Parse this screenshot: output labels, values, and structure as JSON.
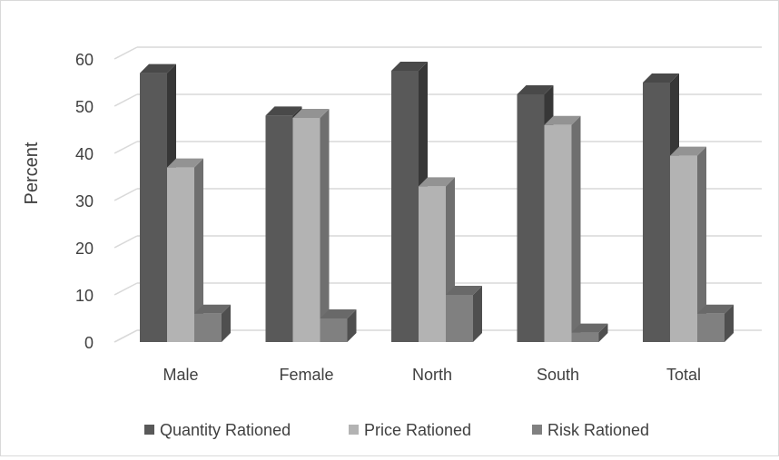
{
  "chart_data": {
    "type": "bar",
    "categories": [
      "Male",
      "Female",
      "North",
      "South",
      "Total"
    ],
    "series": [
      {
        "name": "Quantity Rationed",
        "values": [
          57,
          48,
          57.5,
          52.5,
          55
        ],
        "color": "#595959"
      },
      {
        "name": "Price Rationed",
        "values": [
          37,
          47.5,
          33,
          46,
          39.5
        ],
        "color": "#b3b3b3"
      },
      {
        "name": "Risk Rationed",
        "values": [
          6,
          5,
          10,
          2,
          6
        ],
        "color": "#808080"
      }
    ],
    "ylabel": "Percent",
    "yticks": [
      0,
      10,
      20,
      30,
      40,
      50,
      60
    ],
    "ylim": [
      0,
      60
    ],
    "grid": true,
    "legend_position": "bottom",
    "style": "3d-clustered-column"
  }
}
